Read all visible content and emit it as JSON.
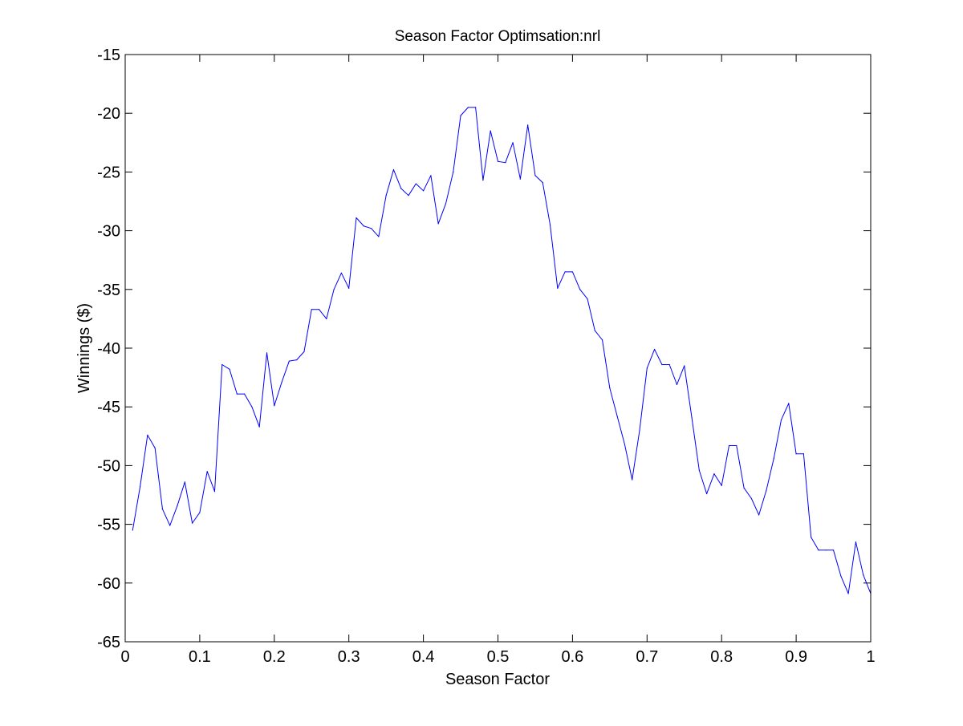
{
  "chart_data": {
    "type": "line",
    "title": "Season Factor Optimsation:nrl",
    "xlabel": "Season Factor",
    "ylabel": "Winnings ($)",
    "xlim": [
      0,
      1
    ],
    "ylim": [
      -65,
      -15
    ],
    "xticks": [
      0,
      0.1,
      0.2,
      0.3,
      0.4,
      0.5,
      0.6,
      0.7,
      0.8,
      0.9,
      1
    ],
    "xtick_labels": [
      "0",
      "0.1",
      "0.2",
      "0.3",
      "0.4",
      "0.5",
      "0.6",
      "0.7",
      "0.8",
      "0.9",
      "1"
    ],
    "yticks": [
      -65,
      -60,
      -55,
      -50,
      -45,
      -40,
      -35,
      -30,
      -25,
      -20,
      -15
    ],
    "ytick_labels": [
      "-65",
      "-60",
      "-55",
      "-50",
      "-45",
      "-40",
      "-35",
      "-30",
      "-25",
      "-20",
      "-15"
    ],
    "grid": false,
    "legend": "none",
    "series": [
      {
        "color": "#0000ff",
        "x": [
          0.01,
          0.02,
          0.03,
          0.04,
          0.05,
          0.06,
          0.07,
          0.08,
          0.09,
          0.1,
          0.11,
          0.12,
          0.13,
          0.14,
          0.15,
          0.16,
          0.17,
          0.18,
          0.19,
          0.2,
          0.21,
          0.22,
          0.23,
          0.24,
          0.25,
          0.26,
          0.27,
          0.28,
          0.29,
          0.3,
          0.31,
          0.32,
          0.33,
          0.34,
          0.35,
          0.36,
          0.37,
          0.38,
          0.39,
          0.4,
          0.41,
          0.42,
          0.43,
          0.44,
          0.45,
          0.46,
          0.47,
          0.48,
          0.49,
          0.5,
          0.51,
          0.52,
          0.53,
          0.54,
          0.55,
          0.56,
          0.57,
          0.58,
          0.59,
          0.6,
          0.61,
          0.62,
          0.63,
          0.64,
          0.65,
          0.66,
          0.67,
          0.68,
          0.69,
          0.7,
          0.71,
          0.72,
          0.73,
          0.74,
          0.75,
          0.76,
          0.77,
          0.78,
          0.79,
          0.8,
          0.81,
          0.82,
          0.83,
          0.84,
          0.85,
          0.86,
          0.87,
          0.88,
          0.89,
          0.9,
          0.91,
          0.92,
          0.93,
          0.94,
          0.95,
          0.96,
          0.97,
          0.98,
          0.99,
          1.0
        ],
        "y": [
          -55.5,
          -51.8,
          -47.4,
          -48.5,
          -53.7,
          -55.1,
          -53.4,
          -51.4,
          -54.9,
          -54.0,
          -50.5,
          -52.2,
          -41.4,
          -41.8,
          -43.9,
          -43.9,
          -45.0,
          -46.7,
          -40.4,
          -44.9,
          -42.9,
          -41.1,
          -41.0,
          -40.3,
          -36.7,
          -36.7,
          -37.5,
          -35.0,
          -33.6,
          -34.9,
          -28.9,
          -29.6,
          -29.8,
          -30.5,
          -27.0,
          -24.8,
          -26.4,
          -27.0,
          -26.0,
          -26.6,
          -25.3,
          -29.4,
          -27.7,
          -25.0,
          -20.2,
          -19.5,
          -19.5,
          -25.7,
          -21.5,
          -24.1,
          -24.2,
          -22.5,
          -25.6,
          -21.0,
          -25.3,
          -25.9,
          -29.5,
          -34.9,
          -33.5,
          -33.5,
          -35.0,
          -35.8,
          -38.5,
          -39.3,
          -43.4,
          -45.8,
          -48.2,
          -51.2,
          -47.0,
          -41.7,
          -40.1,
          -41.4,
          -41.4,
          -43.1,
          -41.5,
          -45.9,
          -50.4,
          -52.4,
          -50.7,
          -51.7,
          -48.3,
          -48.3,
          -51.9,
          -52.8,
          -54.2,
          -52.1,
          -49.4,
          -46.1,
          -44.7,
          -49.0,
          -49.0,
          -56.1,
          -57.2,
          -57.2,
          -57.2,
          -59.4,
          -60.9,
          -56.5,
          -59.3,
          -60.9
        ]
      }
    ]
  }
}
